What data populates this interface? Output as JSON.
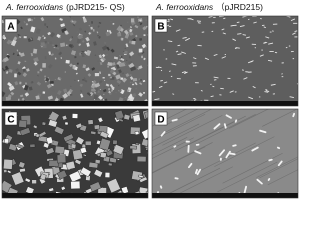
{
  "header": {
    "left": {
      "species": "A. ferrooxidans",
      "strain": "(pJRD215- QS)"
    },
    "right": {
      "species": "A. ferrooxidans",
      "strain": "（pJRD215)"
    }
  },
  "panels": [
    {
      "label": "A"
    },
    {
      "label": "B"
    },
    {
      "label": "C"
    },
    {
      "label": "D"
    }
  ]
}
